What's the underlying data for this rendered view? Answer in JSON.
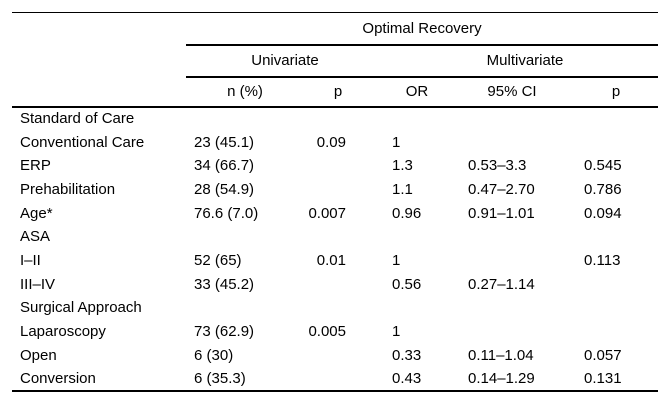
{
  "colors": {
    "background": "#ffffff",
    "text": "#000000",
    "rule": "#000000"
  },
  "table": {
    "title": "Optimal Recovery",
    "group_headers": [
      {
        "label": "Univariate"
      },
      {
        "label": "Multivariate"
      }
    ],
    "column_headers": [
      "n (%)",
      "p",
      "OR",
      "95% CI",
      "p"
    ],
    "rows": [
      {
        "label": "Standard of Care",
        "n_pct": "",
        "p_uni": "",
        "or": "",
        "ci_95": "",
        "p_multi": ""
      },
      {
        "label": "Conventional Care",
        "n_pct": "23 (45.1)",
        "p_uni": "0.09",
        "or": "1",
        "ci_95": "",
        "p_multi": ""
      },
      {
        "label": "ERP",
        "n_pct": "34 (66.7)",
        "p_uni": "",
        "or": "1.3",
        "ci_95": "0.53–3.3",
        "p_multi": "0.545"
      },
      {
        "label": "Prehabilitation",
        "n_pct": "28 (54.9)",
        "p_uni": "",
        "or": "1.1",
        "ci_95": "0.47–2.70",
        "p_multi": "0.786"
      },
      {
        "label": "Age*",
        "n_pct": "76.6 (7.0)",
        "p_uni": "0.007",
        "or": "0.96",
        "ci_95": "0.91–1.01",
        "p_multi": "0.094"
      },
      {
        "label": "ASA",
        "n_pct": "",
        "p_uni": "",
        "or": "",
        "ci_95": "",
        "p_multi": ""
      },
      {
        "label": "I–II",
        "n_pct": "52 (65)",
        "p_uni": "0.01",
        "or": "1",
        "ci_95": "",
        "p_multi": "0.113"
      },
      {
        "label": "III–IV",
        "n_pct": "33 (45.2)",
        "p_uni": "",
        "or": "0.56",
        "ci_95": "0.27–1.14",
        "p_multi": ""
      },
      {
        "label": "Surgical Approach",
        "n_pct": "",
        "p_uni": "",
        "or": "",
        "ci_95": "",
        "p_multi": ""
      },
      {
        "label": "Laparoscopy",
        "n_pct": "73 (62.9)",
        "p_uni": "0.005",
        "or": "1",
        "ci_95": "",
        "p_multi": ""
      },
      {
        "label": "Open",
        "n_pct": "6 (30)",
        "p_uni": "",
        "or": "0.33",
        "ci_95": "0.11–1.04",
        "p_multi": "0.057"
      },
      {
        "label": "Conversion",
        "n_pct": "6 (35.3)",
        "p_uni": "",
        "or": "0.43",
        "ci_95": "0.14–1.29",
        "p_multi": "0.131"
      }
    ]
  }
}
